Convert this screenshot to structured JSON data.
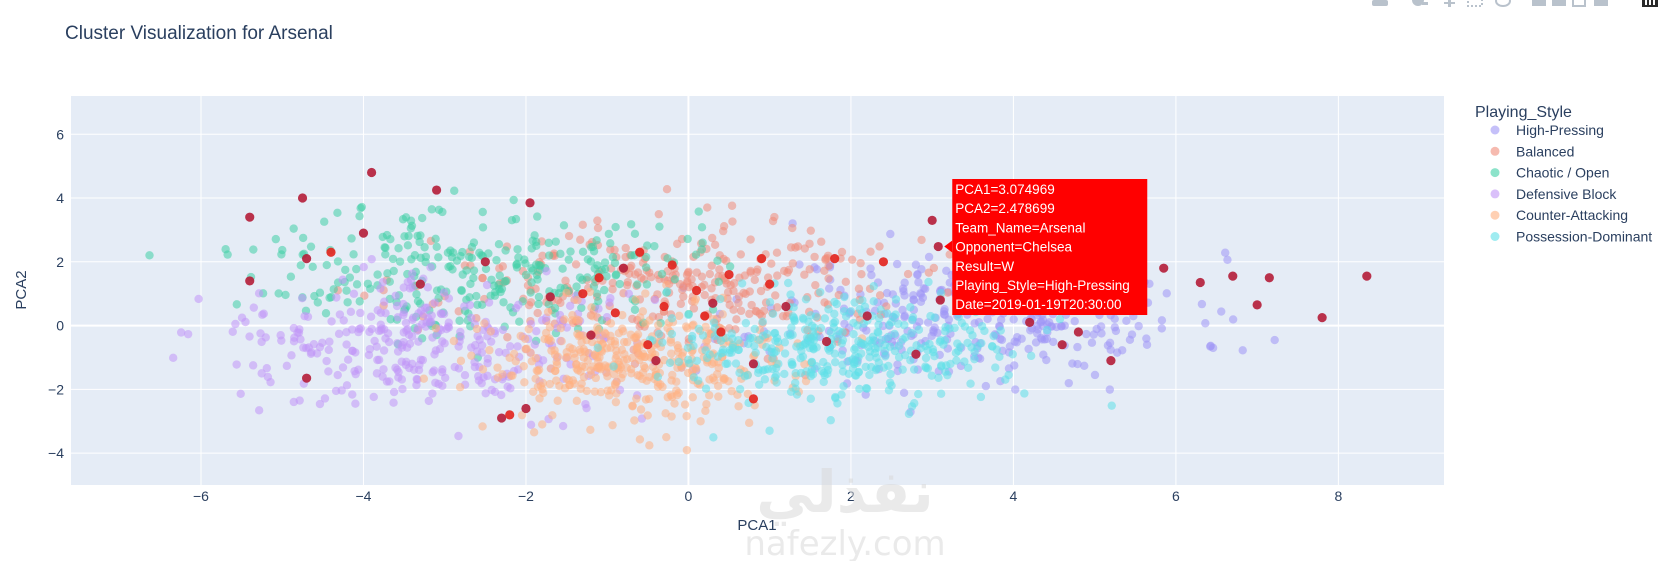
{
  "chart_data": {
    "type": "scatter",
    "title": "Cluster Visualization for Arsenal",
    "xlabel": "PCA1",
    "ylabel": "PCA2",
    "xlim": [
      -7.6,
      9.3
    ],
    "ylim": [
      -5.0,
      7.2
    ],
    "xticks": [
      -6,
      -4,
      -2,
      0,
      2,
      4,
      6,
      8
    ],
    "yticks": [
      -4,
      -2,
      0,
      2,
      4,
      6
    ],
    "xtick_labels": [
      "−6",
      "−4",
      "−2",
      "0",
      "2",
      "4",
      "6",
      "8"
    ],
    "ytick_labels": [
      "−4",
      "−2",
      "0",
      "2",
      "4",
      "6"
    ],
    "grid": true,
    "legend": {
      "title": "Playing_Style",
      "position": "right",
      "entries": [
        {
          "name": "High-Pressing",
          "color": "#9f96f5"
        },
        {
          "name": "Balanced",
          "color": "#f08c7a"
        },
        {
          "name": "Chaotic / Open",
          "color": "#3fd0a6"
        },
        {
          "name": "Defensive Block",
          "color": "#c196f7"
        },
        {
          "name": "Counter-Attacking",
          "color": "#ffb081"
        },
        {
          "name": "Possession-Dominant",
          "color": "#5fe0e8"
        }
      ]
    },
    "series": [
      {
        "name": "High-Pressing",
        "color": "#9f96f5",
        "cx": 3.6,
        "cy": 0.3,
        "sx": 1.3,
        "sy": 1.0,
        "n": 330,
        "seed": 11
      },
      {
        "name": "Balanced",
        "color": "#f08c7a",
        "cx": -0.2,
        "cy": 1.2,
        "sx": 1.4,
        "sy": 1.0,
        "n": 330,
        "seed": 23
      },
      {
        "name": "Chaotic / Open",
        "color": "#3fd0a6",
        "cx": -2.6,
        "cy": 1.8,
        "sx": 1.3,
        "sy": 1.0,
        "n": 300,
        "seed": 37
      },
      {
        "name": "Defensive Block",
        "color": "#c196f7",
        "cx": -3.2,
        "cy": -0.6,
        "sx": 1.3,
        "sy": 1.0,
        "n": 330,
        "seed": 41
      },
      {
        "name": "Counter-Attacking",
        "color": "#ffb081",
        "cx": -0.6,
        "cy": -1.2,
        "sx": 1.0,
        "sy": 0.9,
        "n": 380,
        "seed": 53
      },
      {
        "name": "Possession-Dominant",
        "color": "#5fe0e8",
        "cx": 1.8,
        "cy": -0.8,
        "sx": 1.0,
        "sy": 0.8,
        "n": 380,
        "seed": 67
      }
    ],
    "highlight_points": [
      {
        "x": -5.4,
        "y": 3.4,
        "color": "#b5213c"
      },
      {
        "x": -5.4,
        "y": 1.4,
        "color": "#b5213c"
      },
      {
        "x": -4.75,
        "y": 4.0,
        "color": "#b5213c"
      },
      {
        "x": -4.7,
        "y": 2.1,
        "color": "#b5213c"
      },
      {
        "x": -4.7,
        "y": -1.65,
        "color": "#b5213c"
      },
      {
        "x": -3.9,
        "y": 4.8,
        "color": "#b5213c"
      },
      {
        "x": -3.1,
        "y": 4.25,
        "color": "#b5213c"
      },
      {
        "x": -4.0,
        "y": 2.9,
        "color": "#b5213c"
      },
      {
        "x": -3.3,
        "y": 1.3,
        "color": "#b5213c"
      },
      {
        "x": -2.5,
        "y": 2.0,
        "color": "#b5213c"
      },
      {
        "x": -1.95,
        "y": 3.85,
        "color": "#b5213c"
      },
      {
        "x": -2.3,
        "y": -2.9,
        "color": "#b5213c"
      },
      {
        "x": -2.0,
        "y": -2.6,
        "color": "#b5213c"
      },
      {
        "x": -1.7,
        "y": 0.9,
        "color": "#b5213c"
      },
      {
        "x": -1.2,
        "y": -0.3,
        "color": "#b5213c"
      },
      {
        "x": -0.8,
        "y": 1.8,
        "color": "#b5213c"
      },
      {
        "x": -0.4,
        "y": -1.1,
        "color": "#b5213c"
      },
      {
        "x": 0.3,
        "y": 0.7,
        "color": "#b5213c"
      },
      {
        "x": 0.8,
        "y": -1.2,
        "color": "#b5213c"
      },
      {
        "x": 1.2,
        "y": 0.6,
        "color": "#b5213c"
      },
      {
        "x": 1.7,
        "y": -0.5,
        "color": "#b5213c"
      },
      {
        "x": 2.2,
        "y": 0.3,
        "color": "#b5213c"
      },
      {
        "x": 2.8,
        "y": -0.9,
        "color": "#b5213c"
      },
      {
        "x": 3.1,
        "y": 0.8,
        "color": "#b5213c"
      },
      {
        "x": 3.5,
        "y": 1.8,
        "color": "#b5213c"
      },
      {
        "x": 3.074969,
        "y": 2.478699,
        "color": "#b5213c"
      },
      {
        "x": 4.2,
        "y": 0.1,
        "color": "#b5213c"
      },
      {
        "x": 4.6,
        "y": -0.6,
        "color": "#b5213c"
      },
      {
        "x": 5.2,
        "y": -1.1,
        "color": "#b5213c"
      },
      {
        "x": 5.85,
        "y": 1.8,
        "color": "#b5213c"
      },
      {
        "x": 6.3,
        "y": 1.35,
        "color": "#b5213c"
      },
      {
        "x": 6.7,
        "y": 1.55,
        "color": "#b5213c"
      },
      {
        "x": 7.0,
        "y": 0.65,
        "color": "#b5213c"
      },
      {
        "x": 7.15,
        "y": 1.5,
        "color": "#b5213c"
      },
      {
        "x": 7.8,
        "y": 0.25,
        "color": "#b5213c"
      },
      {
        "x": 8.35,
        "y": 1.55,
        "color": "#b5213c"
      },
      {
        "x": 3.0,
        "y": 3.3,
        "color": "#b5213c"
      },
      {
        "x": 4.8,
        "y": -0.2,
        "color": "#b5213c"
      },
      {
        "x": -1.1,
        "y": 1.5,
        "color": "#e3261f"
      },
      {
        "x": -0.6,
        "y": 2.3,
        "color": "#e3261f"
      },
      {
        "x": -0.2,
        "y": 1.9,
        "color": "#e3261f"
      },
      {
        "x": 0.1,
        "y": 1.1,
        "color": "#e3261f"
      },
      {
        "x": 0.5,
        "y": 1.6,
        "color": "#e3261f"
      },
      {
        "x": 0.9,
        "y": 2.1,
        "color": "#e3261f"
      },
      {
        "x": 1.8,
        "y": 2.1,
        "color": "#e3261f"
      },
      {
        "x": 2.4,
        "y": 2.0,
        "color": "#e3261f"
      },
      {
        "x": -0.9,
        "y": 0.4,
        "color": "#e3261f"
      },
      {
        "x": -0.3,
        "y": 0.6,
        "color": "#e3261f"
      },
      {
        "x": 0.4,
        "y": -0.2,
        "color": "#e3261f"
      },
      {
        "x": 0.8,
        "y": -2.3,
        "color": "#e3261f"
      },
      {
        "x": -2.2,
        "y": -2.8,
        "color": "#e3261f"
      },
      {
        "x": -1.3,
        "y": 1.0,
        "color": "#e3261f"
      },
      {
        "x": -0.5,
        "y": -0.6,
        "color": "#e3261f"
      },
      {
        "x": 0.2,
        "y": 0.3,
        "color": "#e3261f"
      },
      {
        "x": 1.0,
        "y": 1.3,
        "color": "#e3261f"
      },
      {
        "x": -4.4,
        "y": 2.3,
        "color": "#e3261f"
      }
    ],
    "hover_label": {
      "anchor_x": 3.074969,
      "anchor_y": 2.478699,
      "bgcolor": "#ff0000",
      "lines": [
        "PCA1=3.074969",
        "PCA2=2.478699",
        "Team_Name=Arsenal",
        "Opponent=Chelsea",
        "Result=W",
        "Playing_Style=High-Pressing",
        "Date=2019-01-19T20:30:00"
      ]
    }
  },
  "toolbar": {
    "icons": [
      "camera-icon",
      "zoom-icon",
      "pan-icon",
      "box-select-icon",
      "lasso-icon",
      "zoom-in-icon",
      "zoom-out-icon",
      "autoscale-icon",
      "reset-axes-icon",
      "plotly-logo-icon"
    ]
  },
  "watermark": {
    "arabic": "نفذلي",
    "latin": "nafezly.com"
  }
}
